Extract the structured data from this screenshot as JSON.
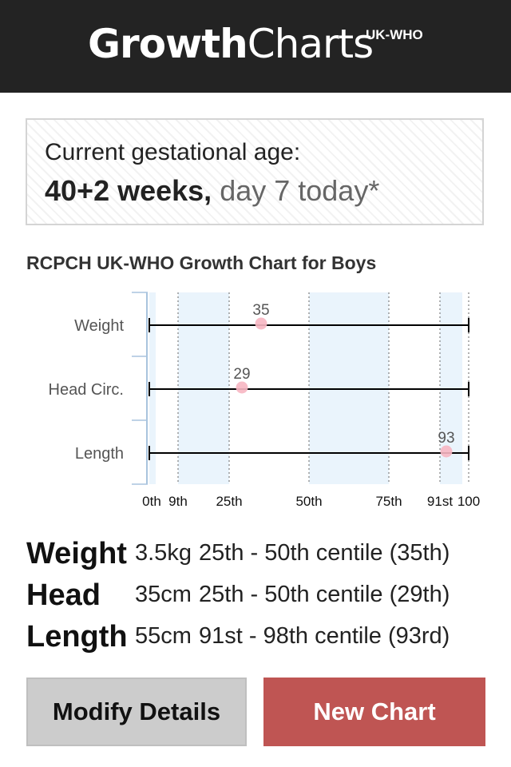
{
  "header": {
    "logo_bold": "Growth",
    "logo_light": "Charts",
    "logo_sup": "UK-WHO"
  },
  "gestation": {
    "label": "Current gestational age:",
    "weeks": "40+2 weeks,",
    "day": " day 7 today*"
  },
  "chart_title": "RCPCH UK-WHO Growth Chart for Boys",
  "chart_data": {
    "type": "scatter",
    "title": "RCPCH UK-WHO Growth Chart for Boys",
    "categories": [
      "Weight",
      "Head Circ.",
      "Length"
    ],
    "values": [
      35,
      29,
      93
    ],
    "x_ticks": [
      "0th",
      "9th",
      "25th",
      "50th",
      "75th",
      "91st",
      "100"
    ],
    "x_tick_values": [
      0,
      9,
      25,
      50,
      75,
      91,
      100
    ],
    "xlim": [
      0,
      100
    ],
    "shaded_bands": [
      [
        0,
        2
      ],
      [
        9,
        25
      ],
      [
        50,
        75
      ],
      [
        91,
        98
      ]
    ],
    "point_color": "#f7b6c2",
    "band_color": "#eaf4fc",
    "line_color": "#000000",
    "grid": true
  },
  "results": [
    {
      "label": "Weight",
      "value": "3.5kg",
      "centile": "25th - 50th centile (35th)"
    },
    {
      "label": "Head",
      "value": "35cm",
      "centile": "25th - 50th centile (29th)"
    },
    {
      "label": "Length",
      "value": "55cm",
      "centile": "91st - 98th centile (93rd)"
    }
  ],
  "buttons": {
    "modify": "Modify Details",
    "new_chart": "New Chart"
  },
  "colors": {
    "header_bg": "#232323",
    "new_chart_bg": "#bf5553",
    "modify_bg": "#cccccc"
  }
}
